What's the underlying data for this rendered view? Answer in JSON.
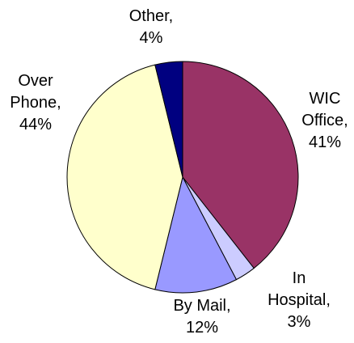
{
  "chart_data": {
    "type": "pie",
    "values": [
      41,
      3,
      12,
      44,
      4
    ],
    "value_labels": [
      "WIC\nOffice,\n41%",
      "In\nHospital,\n3%",
      "By Mail,\n12%",
      "Over\nPhone,\n44%",
      "Other,\n4%"
    ],
    "colors": [
      "#993366",
      "#ccccff",
      "#9999ff",
      "#ffffcc",
      "#000080"
    ]
  }
}
